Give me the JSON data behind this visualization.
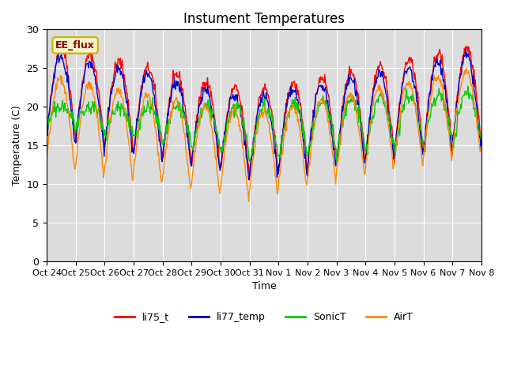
{
  "title": "Instument Temperatures",
  "xlabel": "Time",
  "ylabel": "Temperature (C)",
  "ylim": [
    0,
    30
  ],
  "background_color": "#dcdcdc",
  "figure_color": "#ffffff",
  "annotation_text": "EE_flux",
  "annotation_color": "#8b0000",
  "annotation_bg": "#f5f5c8",
  "annotation_border": "#c8b400",
  "legend_labels": [
    "li75_t",
    "li77_temp",
    "SonicT",
    "AirT"
  ],
  "line_colors": [
    "#ff0000",
    "#0000cc",
    "#00cc00",
    "#ff8800"
  ],
  "xtick_labels": [
    "Oct 24",
    "Oct 25",
    "Oct 26",
    "Oct 27",
    "Oct 28",
    "Oct 29",
    "Oct 30",
    "Oct 31",
    "Nov 1",
    "Nov 2",
    "Nov 3",
    "Nov 4",
    "Nov 5",
    "Nov 6",
    "Nov 7",
    "Nov 8"
  ],
  "n_days": 15,
  "points_per_day": 48
}
